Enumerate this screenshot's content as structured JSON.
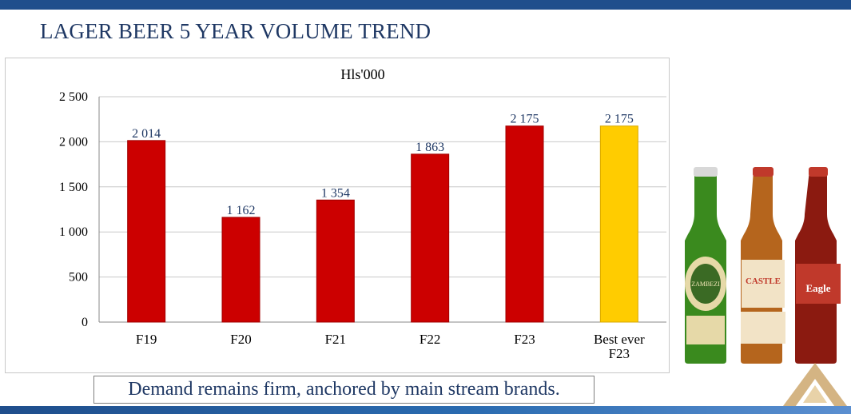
{
  "slide": {
    "title": "LAGER BEER 5 YEAR VOLUME TREND",
    "footer_text": "Demand remains firm, anchored by main stream brands."
  },
  "colors": {
    "header_bar": "#1f4e8c",
    "title_text": "#1f3864",
    "bar_red": "#cc0000",
    "bar_yellow": "#ffcc00"
  },
  "chart_data": {
    "type": "bar",
    "title": "Hls'000",
    "xlabel": "",
    "ylabel": "",
    "ylim": [
      0,
      2500
    ],
    "yticks": [
      0,
      500,
      1000,
      1500,
      2000,
      2500
    ],
    "ytick_labels": [
      "0",
      "500",
      "1 000",
      "1 500",
      "2 000",
      "2 500"
    ],
    "grid": true,
    "categories": [
      "F19",
      "F20",
      "F21",
      "F22",
      "F23",
      "Best ever F23"
    ],
    "category_lines": [
      [
        "F19"
      ],
      [
        "F20"
      ],
      [
        "F21"
      ],
      [
        "F22"
      ],
      [
        "F23"
      ],
      [
        "Best ever",
        "F23"
      ]
    ],
    "values": [
      2014,
      1162,
      1354,
      1863,
      2175,
      2175
    ],
    "value_labels": [
      "2 014",
      "1 162",
      "1 354",
      "1 863",
      "2 175",
      "2 175"
    ],
    "bar_colors": [
      "#cc0000",
      "#cc0000",
      "#cc0000",
      "#cc0000",
      "#cc0000",
      "#ffcc00"
    ]
  },
  "product_image": {
    "bottles": [
      {
        "brand": "ZAMBEZI",
        "color": "#3a8a1e"
      },
      {
        "brand": "CASTLE",
        "color": "#b5651d"
      },
      {
        "brand": "Eagle",
        "color": "#8b1a10"
      }
    ]
  }
}
